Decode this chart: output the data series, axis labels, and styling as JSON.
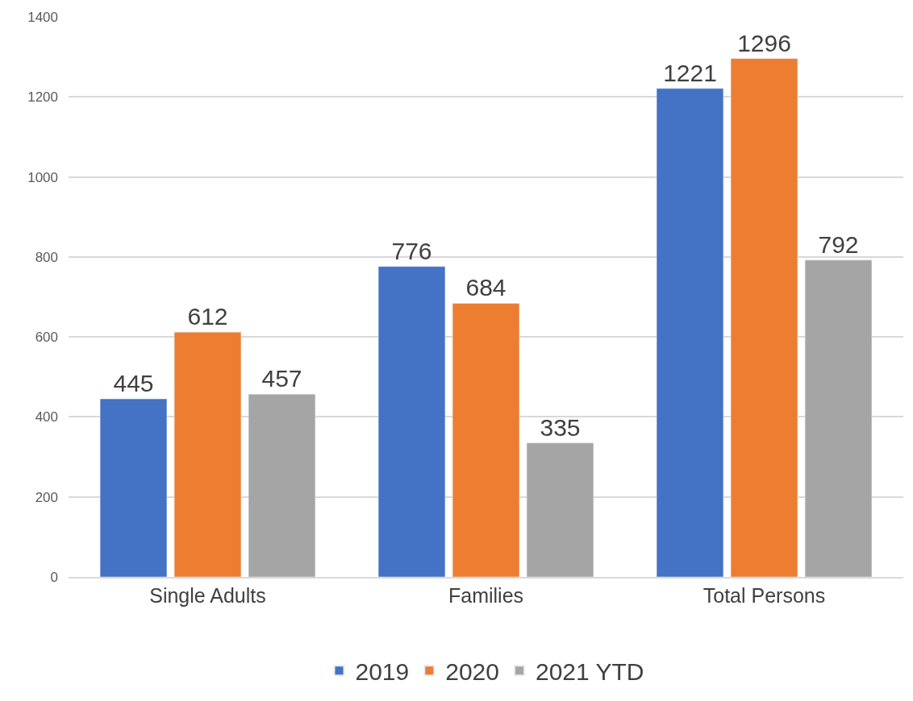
{
  "chart_data": {
    "type": "bar",
    "categories": [
      "Single Adults",
      "Families",
      "Total Persons"
    ],
    "series": [
      {
        "name": "2019",
        "color": "#4472c4",
        "values": [
          445,
          776,
          1221
        ]
      },
      {
        "name": "2020",
        "color": "#ed7d31",
        "values": [
          612,
          684,
          1296
        ]
      },
      {
        "name": "2021 YTD",
        "color": "#a5a5a5",
        "values": [
          457,
          335,
          792
        ]
      }
    ],
    "ylim": [
      0,
      1400
    ],
    "yticks": [
      0,
      200,
      400,
      600,
      800,
      1000,
      1200,
      1400
    ],
    "grid": "y",
    "legend": "bottom",
    "data_labels": true
  }
}
